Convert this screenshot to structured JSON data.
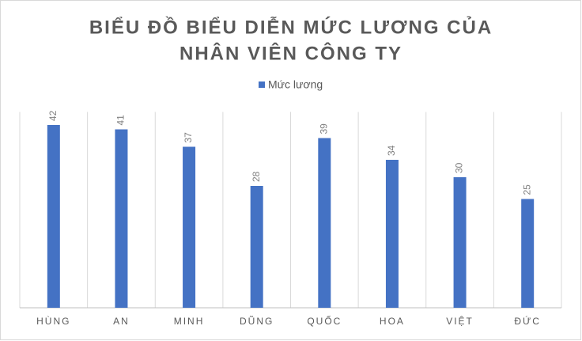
{
  "chart_data": {
    "type": "bar",
    "title": [
      "BIỂU ĐỒ BIỂU DIỄN MỨC LƯƠNG CỦA",
      "NHÂN VIÊN CÔNG TY"
    ],
    "categories": [
      "HÙNG",
      "AN",
      "MINH",
      "DŨNG",
      "QUỐC",
      "HOA",
      "VIỆT",
      "ĐỨC"
    ],
    "series": [
      {
        "name": "Mức lương",
        "color": "#4472c4",
        "values": [
          42,
          41,
          37,
          28,
          39,
          34,
          30,
          25
        ]
      }
    ],
    "ylim": [
      0,
      45
    ],
    "legend": "top",
    "data_labels": true
  }
}
